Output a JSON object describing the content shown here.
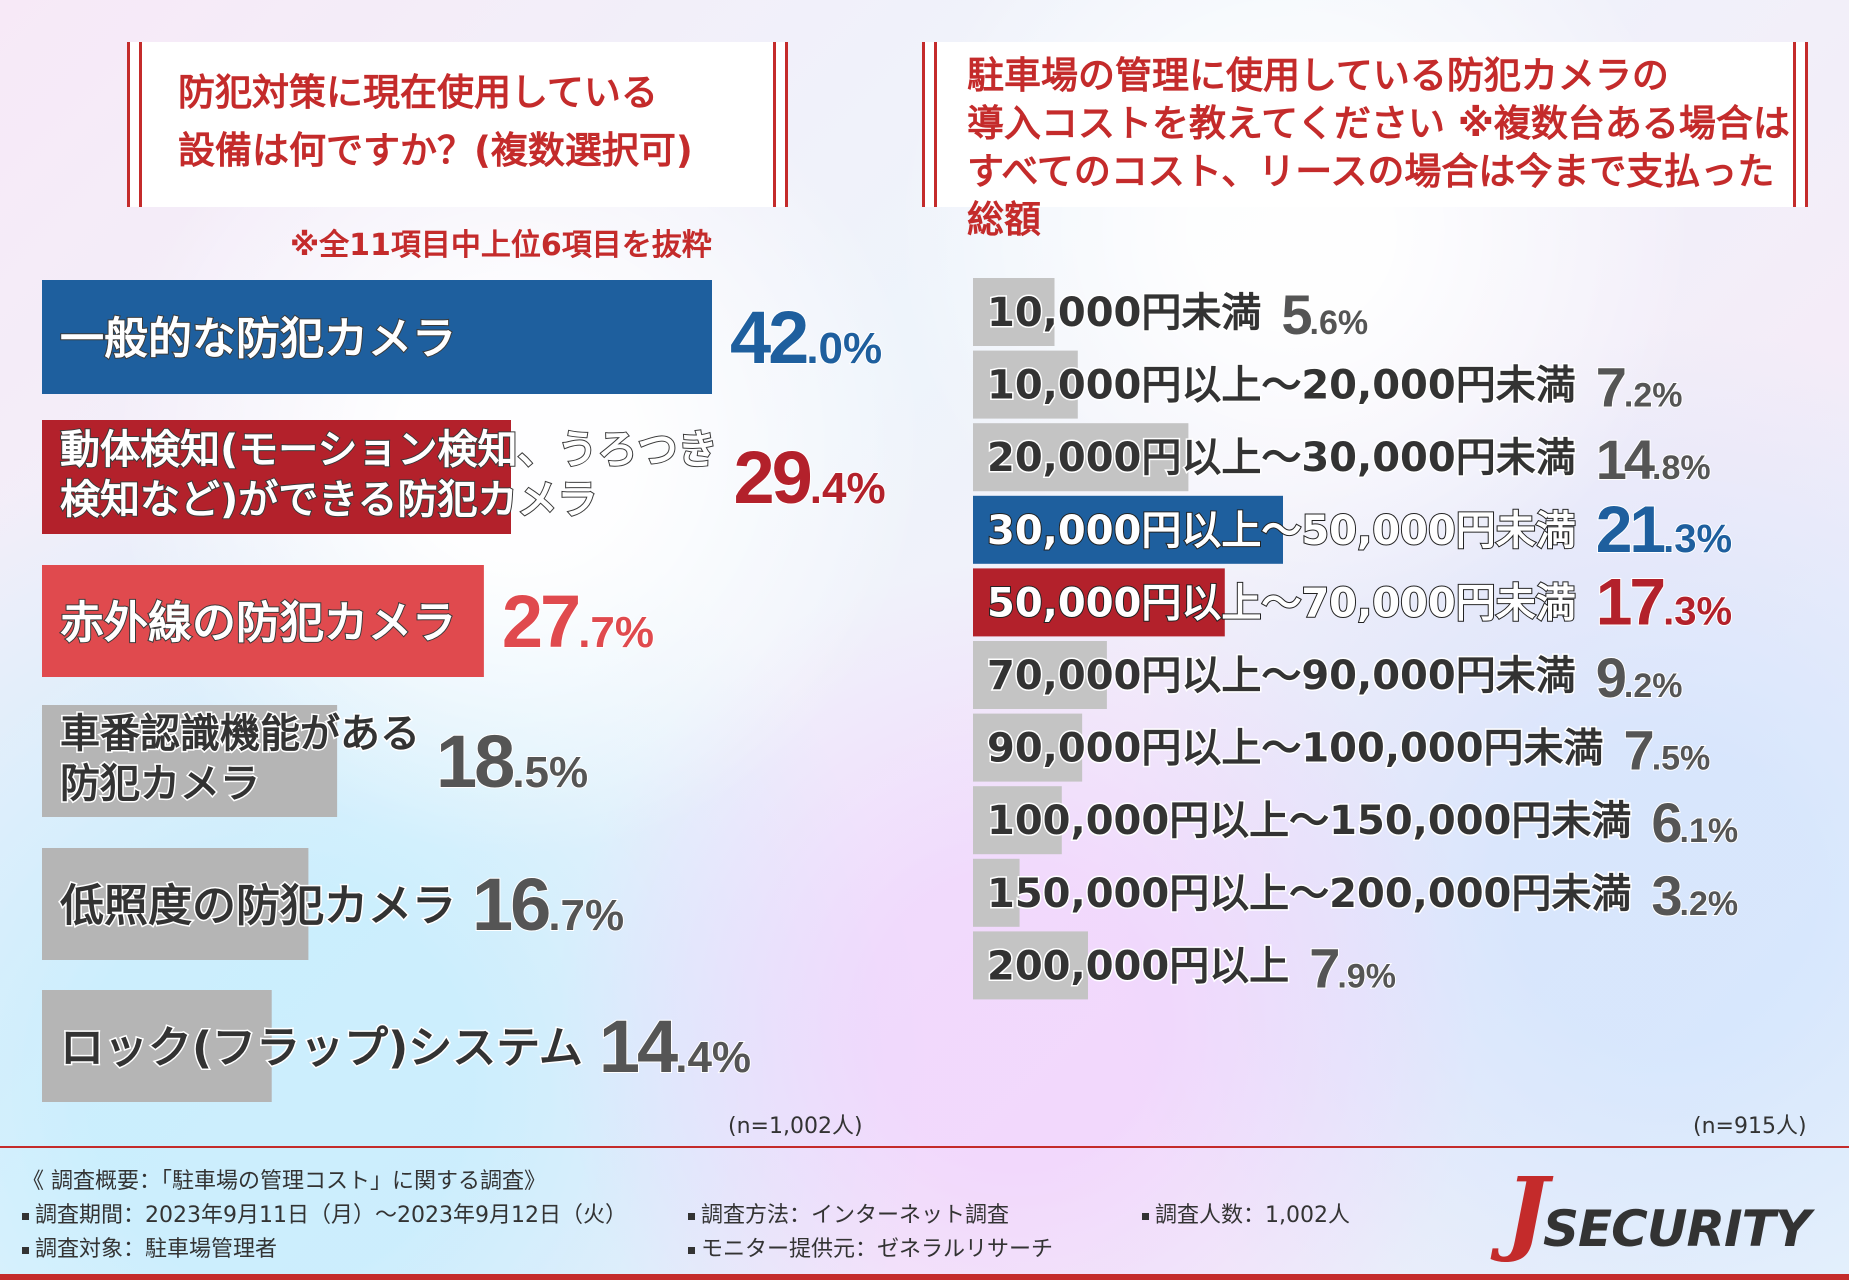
{
  "left_title": {
    "line1": "防犯対策に現在使用している",
    "line2": "設備は何ですか？(複数選択可)"
  },
  "left_note": "※全11項目中上位6項目を抜粋",
  "right_title": {
    "line1": "駐車場の管理に使用している防犯カメラの",
    "line2": "導入コストを教えてください ※複数台ある場合は",
    "line3": "すべてのコスト、リースの場合は今まで支払った総額"
  },
  "chart_data": [
    {
      "type": "bar",
      "orientation": "horizontal",
      "categories": [
        [
          "一般的な防犯カメラ"
        ],
        [
          "動体検知(モーション検知、うろつき",
          "検知など)ができる防犯カメラ"
        ],
        [
          "赤外線の防犯カメラ"
        ],
        [
          "車番認識機能がある",
          "防犯カメラ"
        ],
        [
          "低照度の防犯カメラ"
        ],
        [
          "ロック(フラップ)システム"
        ]
      ],
      "values": [
        42.0,
        29.4,
        27.7,
        18.5,
        16.7,
        14.4
      ],
      "value_labels": [
        "42.0%",
        "29.4%",
        "27.7%",
        "18.5%",
        "16.7%",
        "14.4%"
      ],
      "bar_colors": [
        "#1e5f9e",
        "#b3212b",
        "#e04a4e",
        "#b5b5b5",
        "#b5b5b5",
        "#b5b5b5"
      ],
      "label_colors": [
        "#ffffff",
        "#ffffff",
        "#ffffff",
        "#333333",
        "#333333",
        "#333333"
      ],
      "value_colors": [
        "#1e5f9e",
        "#b3212b",
        "#e04a4e",
        "#555555",
        "#555555",
        "#555555"
      ],
      "note": "(n=1,002人)"
    },
    {
      "type": "bar",
      "orientation": "horizontal",
      "categories": [
        "10,000円未満",
        "10,000円以上～20,000円未満",
        "20,000円以上～30,000円未満",
        "30,000円以上～50,000円未満",
        "50,000円以上～70,000円未満",
        "70,000円以上～90,000円未満",
        "90,000円以上～100,000円未満",
        "100,000円以上～150,000円未満",
        "150,000円以上～200,000円未満",
        "200,000円以上"
      ],
      "values": [
        5.6,
        7.2,
        14.8,
        21.3,
        17.3,
        9.2,
        7.5,
        6.1,
        3.2,
        7.9
      ],
      "value_labels": [
        "5.6%",
        "7.2%",
        "14.8%",
        "21.3%",
        "17.3%",
        "9.2%",
        "7.5%",
        "6.1%",
        "3.2%",
        "7.9%"
      ],
      "bar_colors": [
        "#c4c4c4",
        "#c4c4c4",
        "#c4c4c4",
        "#1e5f9e",
        "#b3212b",
        "#c4c4c4",
        "#c4c4c4",
        "#c4c4c4",
        "#c4c4c4",
        "#c4c4c4"
      ],
      "value_colors": [
        "#555555",
        "#555555",
        "#555555",
        "#1e5f9e",
        "#b3212b",
        "#555555",
        "#555555",
        "#555555",
        "#555555",
        "#555555"
      ],
      "note": "(n=915人)"
    }
  ],
  "footer": {
    "overview": "《 調査概要：「駐車場の管理コスト」に関する調査》",
    "period": "調査期間：2023年9月11日（月）～2023年9月12日（火）",
    "method": "調査方法：インターネット調査",
    "count": "調査人数：1,002人",
    "target": "調査対象：駐車場管理者",
    "monitor": "モニター提供元：ゼネラルリサーチ"
  },
  "logo": {
    "j": "J",
    "text": "SECURITY"
  }
}
